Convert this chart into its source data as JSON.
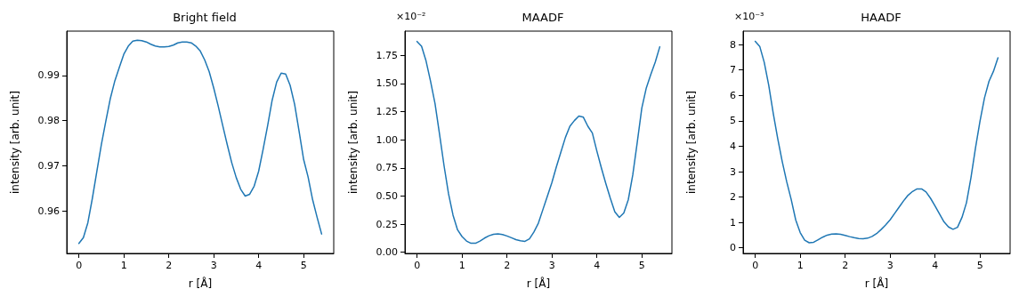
{
  "chart_data": [
    {
      "type": "line",
      "title": "Bright field",
      "xlabel": "r [Å]",
      "ylabel": "intensity [arb. unit]",
      "xlim": [
        -0.27,
        5.67
      ],
      "xticks": [
        0,
        1,
        2,
        3,
        4,
        5
      ],
      "ylim": [
        0.9506,
        0.9998
      ],
      "yticks": [
        0.96,
        0.97,
        0.98,
        0.99
      ],
      "grid": false,
      "marker": "none",
      "line_style": "solid",
      "x": [
        0,
        0.1,
        0.2,
        0.3,
        0.4,
        0.5,
        0.6,
        0.7,
        0.8,
        0.9,
        1,
        1.1,
        1.2,
        1.3,
        1.4,
        1.5,
        1.6,
        1.7,
        1.8,
        1.9,
        2,
        2.1,
        2.2,
        2.3,
        2.4,
        2.5,
        2.6,
        2.7,
        2.8,
        2.9,
        3,
        3.1,
        3.2,
        3.3,
        3.4,
        3.5,
        3.6,
        3.7,
        3.8,
        3.9,
        4,
        4.1,
        4.2,
        4.3,
        4.4,
        4.5,
        4.6,
        4.7,
        4.8,
        4.9,
        5,
        5.1,
        5.2,
        5.3,
        5.4
      ],
      "series": [
        {
          "color": "#1f77b4",
          "values": [
            0.9528,
            0.9541,
            0.9574,
            0.9628,
            0.9688,
            0.9747,
            0.9799,
            0.9849,
            0.9888,
            0.9918,
            0.9947,
            0.9965,
            0.9976,
            0.9978,
            0.9977,
            0.9974,
            0.9969,
            0.9965,
            0.9963,
            0.9963,
            0.9964,
            0.9967,
            0.9972,
            0.9974,
            0.9974,
            0.9972,
            0.9965,
            0.9954,
            0.9934,
            0.9908,
            0.9872,
            0.9832,
            0.9789,
            0.9747,
            0.9707,
            0.9674,
            0.9648,
            0.9633,
            0.9637,
            0.9655,
            0.9688,
            0.9737,
            0.9789,
            0.9845,
            0.9885,
            0.9905,
            0.9903,
            0.9878,
            0.9836,
            0.9776,
            0.9714,
            0.9675,
            0.9625,
            0.9586,
            0.9549
          ]
        }
      ]
    },
    {
      "type": "line",
      "title": "MAADF",
      "xlabel": "r [Å]",
      "ylabel": "intensity [arb. unit]",
      "annotations": [
        "×10⁻²"
      ],
      "xlim": [
        -0.27,
        5.67
      ],
      "xticks": [
        0,
        1,
        2,
        3,
        4,
        5
      ],
      "ylim": [
        -0.01,
        1.965
      ],
      "yticks": [
        {
          "value": 0,
          "label": "0.00"
        },
        {
          "value": 0.25,
          "label": "0.25"
        },
        {
          "value": 0.5,
          "label": "0.50"
        },
        {
          "value": 0.75,
          "label": "0.75"
        },
        {
          "value": 1,
          "label": "1.00"
        },
        {
          "value": 1.25,
          "label": "1.25"
        },
        {
          "value": 1.5,
          "label": "1.50"
        },
        {
          "value": 1.75,
          "label": "1.75"
        }
      ],
      "grid": false,
      "marker": "none",
      "line_style": "solid",
      "x": [
        0,
        0.1,
        0.2,
        0.3,
        0.4,
        0.5,
        0.6,
        0.7,
        0.8,
        0.9,
        1,
        1.1,
        1.2,
        1.3,
        1.4,
        1.5,
        1.6,
        1.7,
        1.8,
        1.9,
        2,
        2.1,
        2.2,
        2.3,
        2.4,
        2.5,
        2.6,
        2.7,
        2.8,
        2.9,
        3,
        3.1,
        3.2,
        3.3,
        3.4,
        3.5,
        3.6,
        3.7,
        3.8,
        3.9,
        4,
        4.1,
        4.2,
        4.3,
        4.4,
        4.5,
        4.6,
        4.7,
        4.8,
        4.9,
        5,
        5.1,
        5.2,
        5.3,
        5.4
      ],
      "series": [
        {
          "color": "#1f77b4",
          "values": [
            1.873,
            1.83,
            1.7,
            1.52,
            1.32,
            1.05,
            0.77,
            0.52,
            0.33,
            0.2,
            0.14,
            0.1,
            0.08,
            0.08,
            0.1,
            0.126,
            0.147,
            0.16,
            0.163,
            0.158,
            0.145,
            0.129,
            0.113,
            0.102,
            0.097,
            0.12,
            0.18,
            0.26,
            0.38,
            0.5,
            0.62,
            0.76,
            0.89,
            1.02,
            1.12,
            1.17,
            1.21,
            1.2,
            1.12,
            1.06,
            0.9,
            0.75,
            0.61,
            0.48,
            0.36,
            0.31,
            0.35,
            0.468,
            0.69,
            0.98,
            1.28,
            1.46,
            1.58,
            1.69,
            1.826
          ]
        }
      ]
    },
    {
      "type": "line",
      "title": "HAADF",
      "xlabel": "r [Å]",
      "ylabel": "intensity [arb. unit]",
      "annotations": [
        "×10⁻³"
      ],
      "xlim": [
        -0.27,
        5.67
      ],
      "xticks": [
        0,
        1,
        2,
        3,
        4,
        5
      ],
      "ylim": [
        -0.22,
        8.53
      ],
      "yticks": [
        0,
        1,
        2,
        3,
        4,
        5,
        6,
        7,
        8
      ],
      "grid": false,
      "marker": "none",
      "line_style": "solid",
      "x": [
        0,
        0.1,
        0.2,
        0.3,
        0.4,
        0.5,
        0.6,
        0.7,
        0.8,
        0.9,
        1,
        1.1,
        1.2,
        1.3,
        1.4,
        1.5,
        1.6,
        1.7,
        1.8,
        1.9,
        2,
        2.1,
        2.2,
        2.3,
        2.4,
        2.5,
        2.6,
        2.7,
        2.8,
        2.9,
        3,
        3.1,
        3.2,
        3.3,
        3.4,
        3.5,
        3.6,
        3.7,
        3.8,
        3.9,
        4,
        4.1,
        4.2,
        4.3,
        4.4,
        4.5,
        4.6,
        4.7,
        4.8,
        4.9,
        5,
        5.1,
        5.2,
        5.3,
        5.4
      ],
      "series": [
        {
          "color": "#1f77b4",
          "values": [
            8.13,
            7.93,
            7.3,
            6.4,
            5.3,
            4.3,
            3.4,
            2.6,
            1.9,
            1.1,
            0.6,
            0.3,
            0.2,
            0.22,
            0.32,
            0.42,
            0.5,
            0.54,
            0.55,
            0.53,
            0.49,
            0.44,
            0.4,
            0.37,
            0.36,
            0.38,
            0.45,
            0.56,
            0.72,
            0.9,
            1.1,
            1.35,
            1.6,
            1.85,
            2.07,
            2.22,
            2.32,
            2.32,
            2.2,
            1.95,
            1.65,
            1.33,
            1.02,
            0.82,
            0.73,
            0.81,
            1.2,
            1.78,
            2.77,
            3.93,
            4.98,
            5.9,
            6.55,
            6.95,
            7.48
          ]
        }
      ]
    }
  ]
}
